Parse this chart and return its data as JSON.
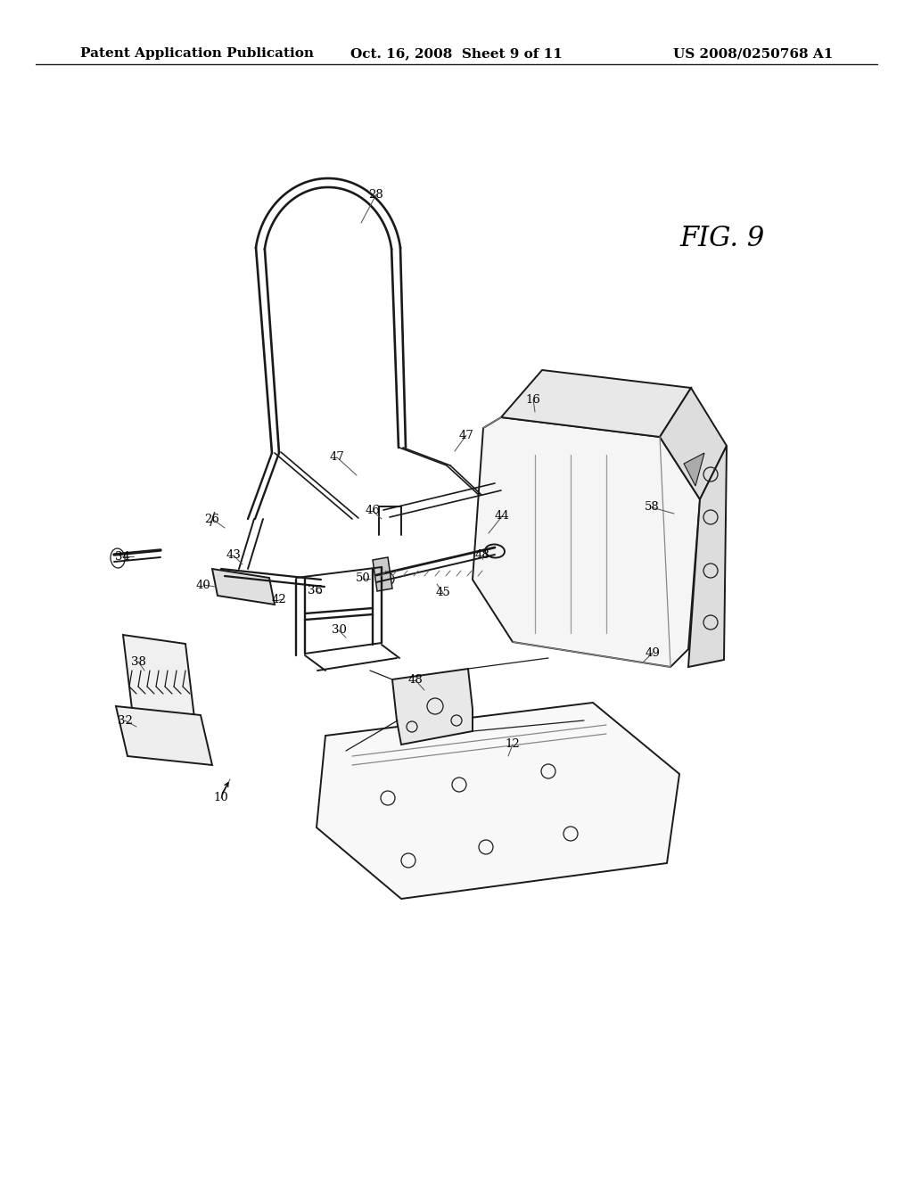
{
  "background_color": "#ffffff",
  "line_color": "#1a1a1a",
  "header_text": "Patent Application Publication",
  "header_date": "Oct. 16, 2008  Sheet 9 of 11",
  "header_patent": "US 2008/0250768 A1",
  "fig_label": "FIG. 9",
  "title_fontsize": 11,
  "label_fontsize": 10,
  "fig_label_fontsize": 22
}
